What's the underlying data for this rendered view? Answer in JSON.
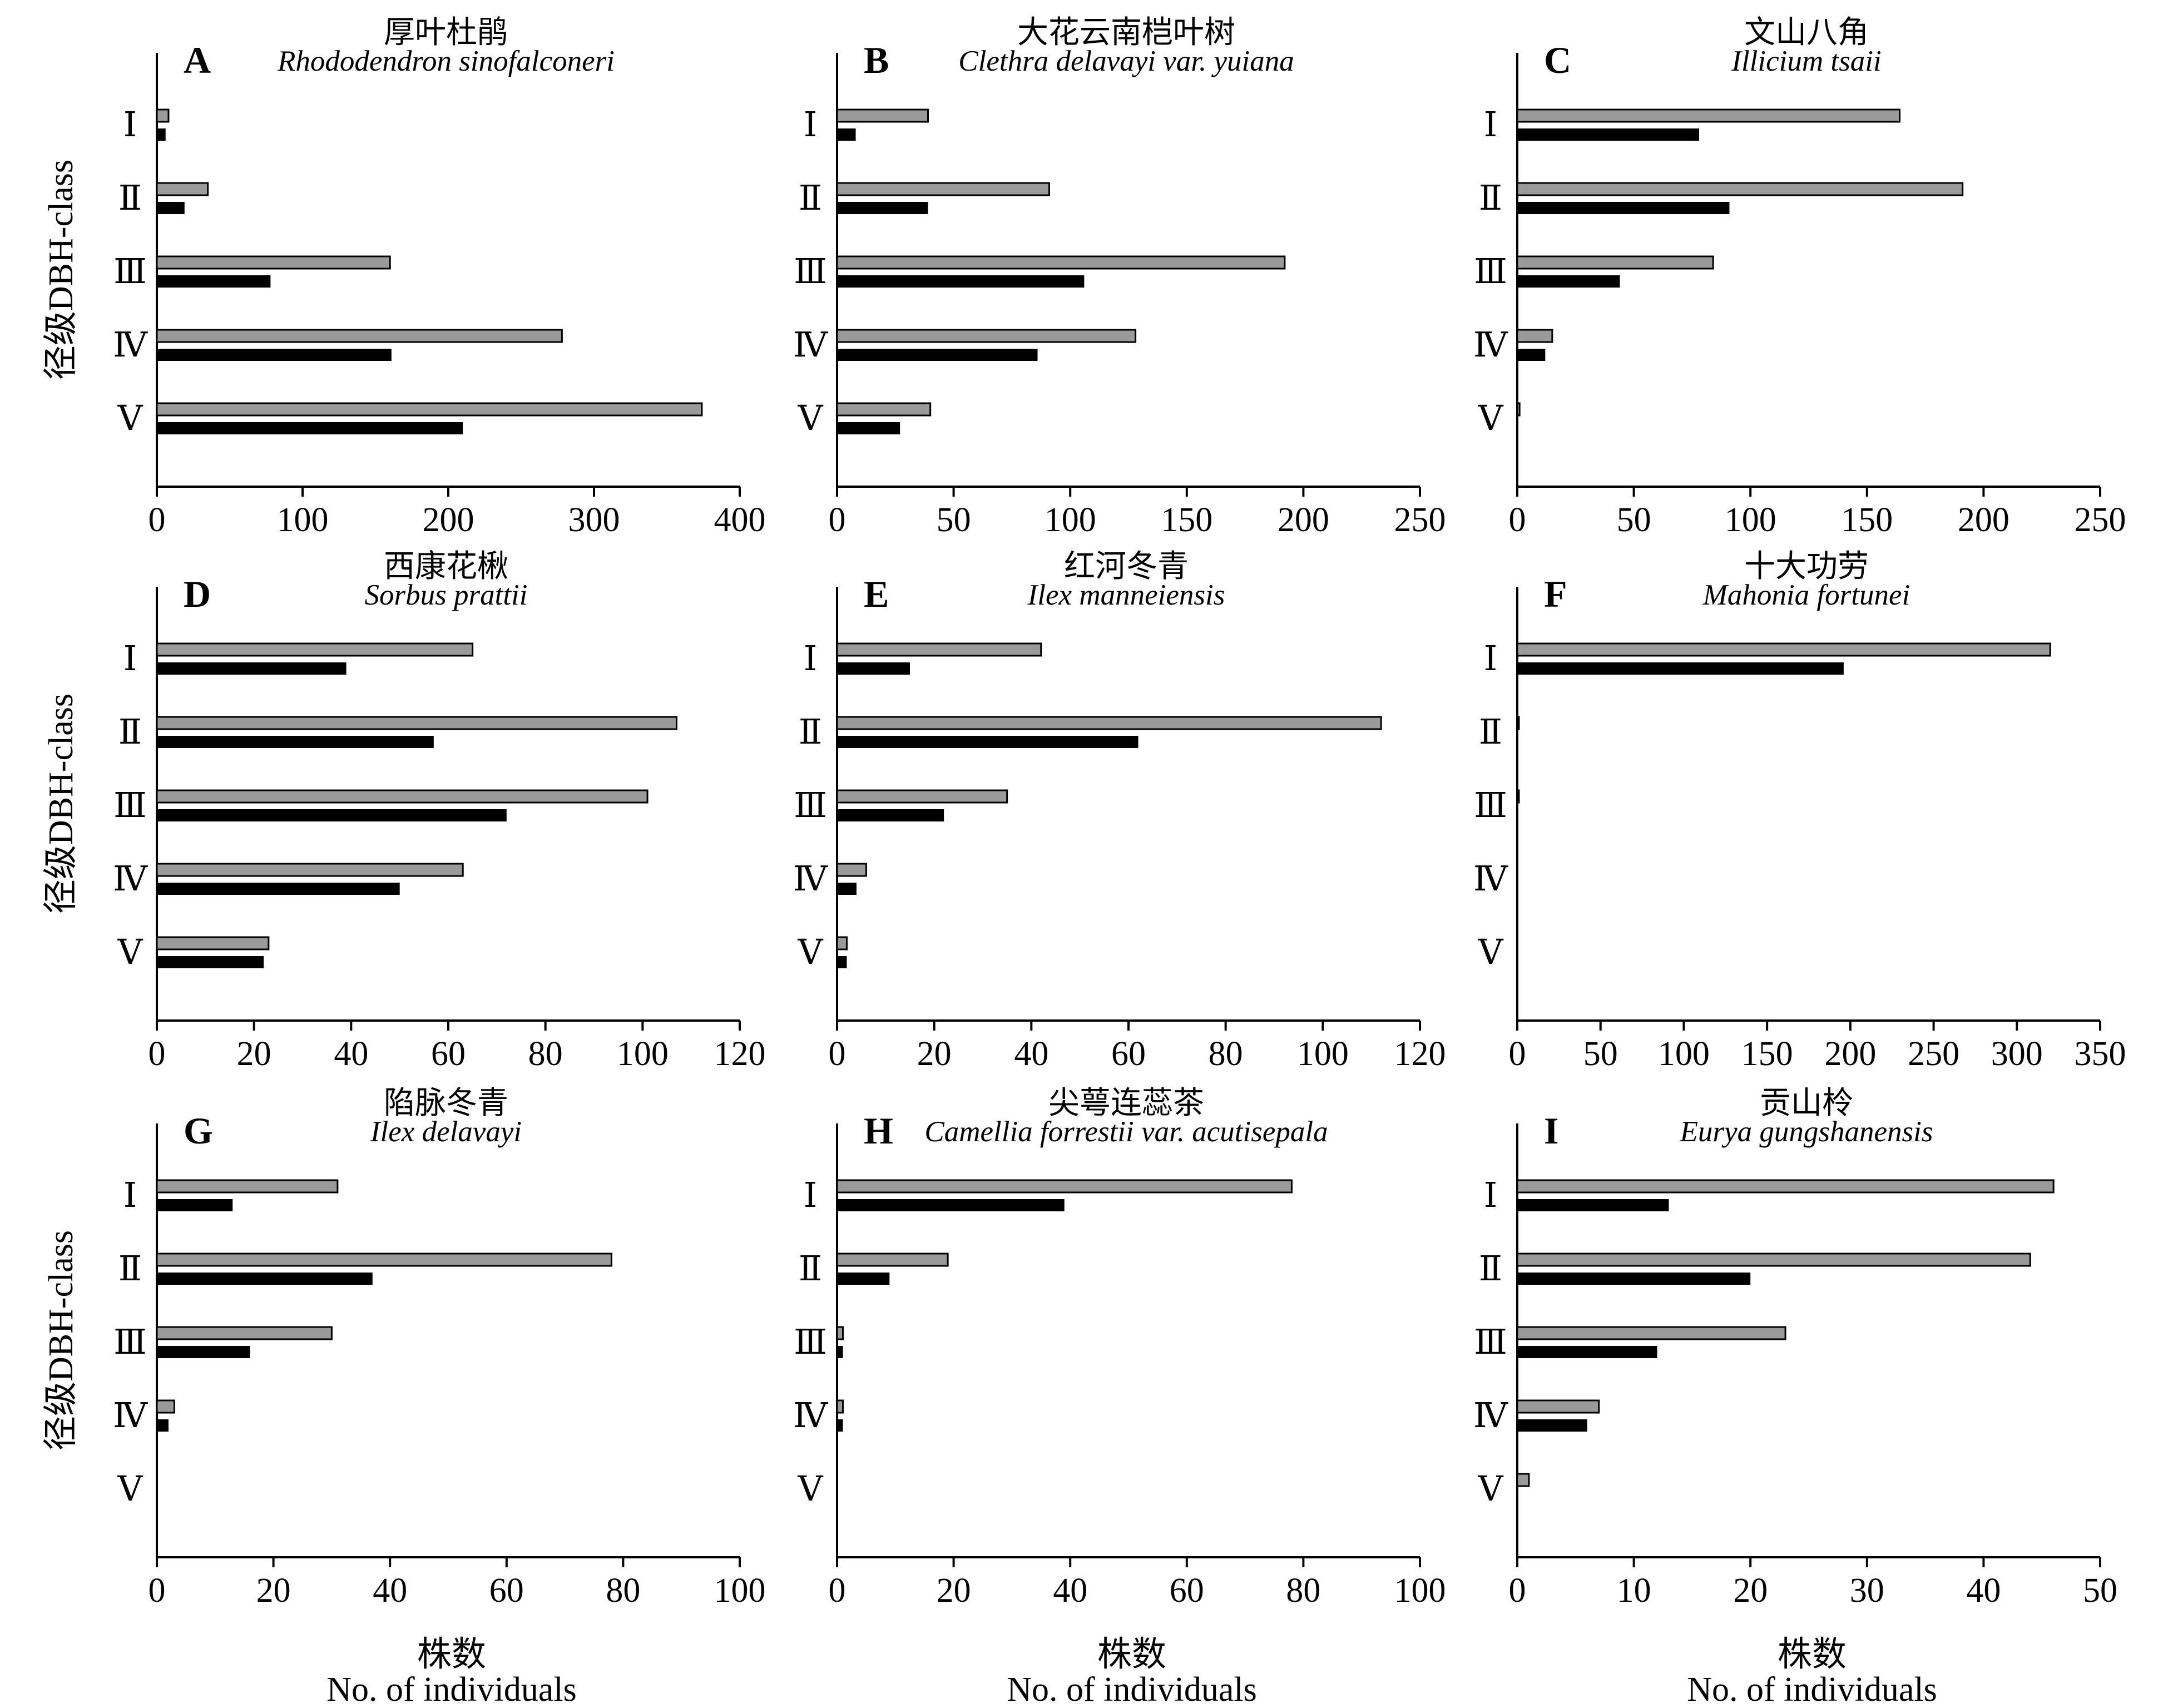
{
  "figure": {
    "ylabel": "径级DBH-class",
    "xlabel_zh": "株数",
    "xlabel_en": "No. of individuals",
    "colors": {
      "series_1_fill": "#9a9a9a",
      "series_1_stroke": "#000000",
      "series_2_fill": "#000000",
      "axis": "#000000"
    }
  },
  "chart_data": [
    {
      "type": "bar",
      "orientation": "horizontal",
      "letter": "A",
      "title_zh": "厚叶杜鹃",
      "title_latin": "Rhododendron sinofalconeri",
      "categories": [
        "Ⅰ",
        "Ⅱ",
        "Ⅲ",
        "Ⅳ",
        "Ⅴ"
      ],
      "xlim": [
        0,
        400
      ],
      "xticks": [
        0,
        100,
        200,
        300,
        400
      ],
      "series": [
        {
          "values": [
            8,
            35,
            160,
            278,
            374
          ]
        },
        {
          "values": [
            6,
            19,
            78,
            161,
            210
          ]
        }
      ]
    },
    {
      "type": "bar",
      "orientation": "horizontal",
      "letter": "B",
      "title_zh": "大花云南桤叶树",
      "title_latin": "Clethra delavayi var. yuiana",
      "categories": [
        "Ⅰ",
        "Ⅱ",
        "Ⅲ",
        "Ⅳ",
        "Ⅴ"
      ],
      "xlim": [
        0,
        250
      ],
      "xticks": [
        0,
        50,
        100,
        150,
        200,
        250
      ],
      "series": [
        {
          "values": [
            39,
            91,
            192,
            128,
            40
          ]
        },
        {
          "values": [
            8,
            39,
            106,
            86,
            27
          ]
        }
      ]
    },
    {
      "type": "bar",
      "orientation": "horizontal",
      "letter": "C",
      "title_zh": "文山八角",
      "title_latin": "Illicium tsaii",
      "categories": [
        "Ⅰ",
        "Ⅱ",
        "Ⅲ",
        "Ⅳ",
        "Ⅴ"
      ],
      "xlim": [
        0,
        250
      ],
      "xticks": [
        0,
        50,
        100,
        150,
        200,
        250
      ],
      "series": [
        {
          "values": [
            164,
            191,
            84,
            15,
            1
          ]
        },
        {
          "values": [
            78,
            91,
            44,
            12,
            0
          ]
        }
      ]
    },
    {
      "type": "bar",
      "orientation": "horizontal",
      "letter": "D",
      "title_zh": "西康花楸",
      "title_latin": "Sorbus prattii",
      "categories": [
        "Ⅰ",
        "Ⅱ",
        "Ⅲ",
        "Ⅳ",
        "Ⅴ"
      ],
      "xlim": [
        0,
        120
      ],
      "xticks": [
        0,
        20,
        40,
        60,
        80,
        100,
        120
      ],
      "series": [
        {
          "values": [
            65,
            107,
            101,
            63,
            23
          ]
        },
        {
          "values": [
            39,
            57,
            72,
            50,
            22
          ]
        }
      ]
    },
    {
      "type": "bar",
      "orientation": "horizontal",
      "letter": "E",
      "title_zh": "红河冬青",
      "title_latin": "Ilex manneiensis",
      "categories": [
        "Ⅰ",
        "Ⅱ",
        "Ⅲ",
        "Ⅳ",
        "Ⅴ"
      ],
      "xlim": [
        0,
        120
      ],
      "xticks": [
        0,
        20,
        40,
        60,
        80,
        100,
        120
      ],
      "series": [
        {
          "values": [
            42,
            112,
            35,
            6,
            2
          ]
        },
        {
          "values": [
            15,
            62,
            22,
            4,
            2
          ]
        }
      ]
    },
    {
      "type": "bar",
      "orientation": "horizontal",
      "letter": "F",
      "title_zh": "十大功劳",
      "title_latin": "Mahonia fortunei",
      "categories": [
        "Ⅰ",
        "Ⅱ",
        "Ⅲ",
        "Ⅳ",
        "Ⅴ"
      ],
      "xlim": [
        0,
        350
      ],
      "xticks": [
        0,
        50,
        100,
        150,
        200,
        250,
        300,
        350
      ],
      "series": [
        {
          "values": [
            320,
            1,
            1,
            0,
            0
          ]
        },
        {
          "values": [
            196,
            0,
            0,
            0,
            0
          ]
        }
      ]
    },
    {
      "type": "bar",
      "orientation": "horizontal",
      "letter": "G",
      "title_zh": "陷脉冬青",
      "title_latin": "Ilex delavayi",
      "categories": [
        "Ⅰ",
        "Ⅱ",
        "Ⅲ",
        "Ⅳ",
        "Ⅴ"
      ],
      "xlim": [
        0,
        100
      ],
      "xticks": [
        0,
        20,
        40,
        60,
        80,
        100
      ],
      "series": [
        {
          "values": [
            31,
            78,
            30,
            3,
            0
          ]
        },
        {
          "values": [
            13,
            37,
            16,
            2,
            0
          ]
        }
      ]
    },
    {
      "type": "bar",
      "orientation": "horizontal",
      "letter": "H",
      "title_zh": "尖萼连蕊茶",
      "title_latin": "Camellia forrestii var. acutisepala",
      "categories": [
        "Ⅰ",
        "Ⅱ",
        "Ⅲ",
        "Ⅳ",
        "Ⅴ"
      ],
      "xlim": [
        0,
        100
      ],
      "xticks": [
        0,
        20,
        40,
        60,
        80,
        100
      ],
      "series": [
        {
          "values": [
            78,
            19,
            1,
            1,
            0
          ]
        },
        {
          "values": [
            39,
            9,
            1,
            1,
            0
          ]
        }
      ]
    },
    {
      "type": "bar",
      "orientation": "horizontal",
      "letter": "I",
      "title_zh": "贡山柃",
      "title_latin": "Eurya gungshanensis",
      "categories": [
        "Ⅰ",
        "Ⅱ",
        "Ⅲ",
        "Ⅳ",
        "Ⅴ"
      ],
      "xlim": [
        0,
        50
      ],
      "xticks": [
        0,
        10,
        20,
        30,
        40,
        50
      ],
      "series": [
        {
          "values": [
            46,
            44,
            23,
            7,
            1
          ]
        },
        {
          "values": [
            13,
            20,
            12,
            6,
            0
          ]
        }
      ]
    }
  ]
}
